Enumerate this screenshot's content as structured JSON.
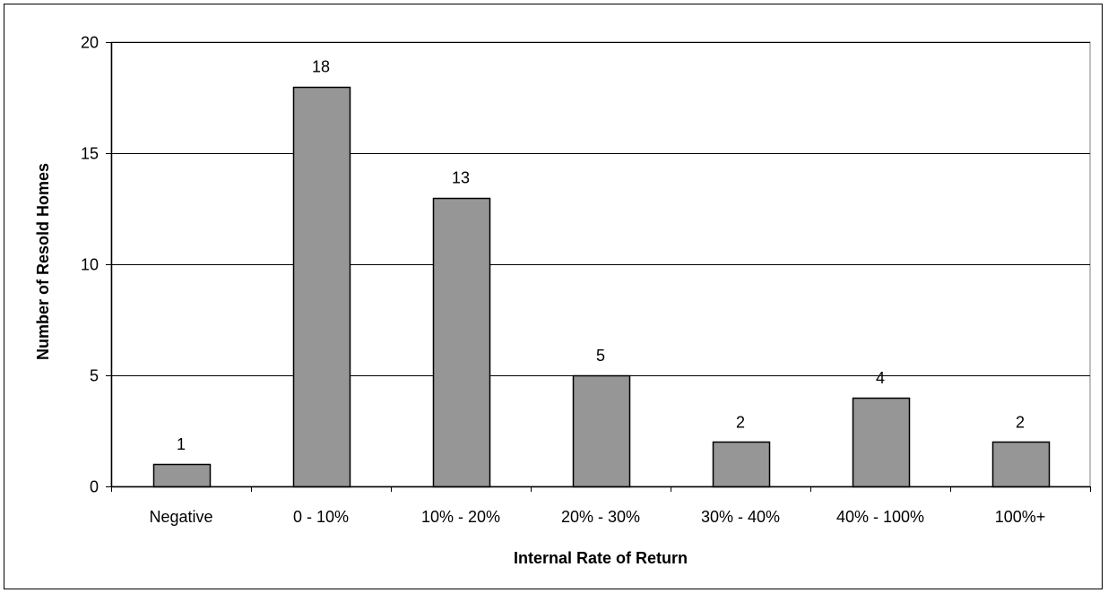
{
  "chart_data": {
    "type": "bar",
    "title": "",
    "xlabel": "Internal Rate of Return",
    "ylabel": "Number of Resold Homes",
    "categories": [
      "Negative",
      "0 - 10%",
      "10% - 20%",
      "20% - 30%",
      "30% - 40%",
      "40% - 100%",
      "100%+"
    ],
    "values": [
      1,
      18,
      13,
      5,
      2,
      4,
      2
    ],
    "data_labels": [
      "1",
      "18",
      "13",
      "5",
      "2",
      "4",
      "2"
    ],
    "ylim": [
      0,
      20
    ],
    "yticks": [
      0,
      5,
      10,
      15,
      20
    ],
    "ytick_labels": [
      "0",
      "5",
      "10",
      "15",
      "20"
    ],
    "grid": true,
    "legend": "none",
    "colors": {
      "bar_fill": "#969696",
      "bar_stroke": "#000000",
      "grid": "#000000",
      "axis": "#000000",
      "plot_border": "#808080"
    }
  }
}
